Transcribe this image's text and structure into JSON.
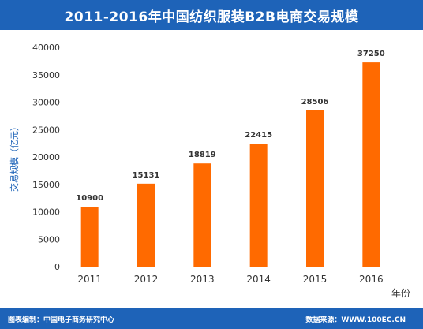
{
  "header": {
    "title": "2011-2016年中国纺织服装B2B电商交易规模"
  },
  "footer": {
    "left": "图表编制：中国电子商务研究中心",
    "right": "数据来源：WWW.100EC.CN"
  },
  "chart_data": {
    "type": "bar",
    "categories": [
      "2011",
      "2012",
      "2013",
      "2014",
      "2015",
      "2016"
    ],
    "values": [
      10900,
      15131,
      18819,
      22415,
      28506,
      37250
    ],
    "data_labels": [
      "10900",
      "15131",
      "18819",
      "22415",
      "28506",
      "37250"
    ],
    "title": "2011-2016年中国纺织服装B2B电商交易规模",
    "xlabel": "年份",
    "ylabel": "交易规模（亿元）",
    "ylim": [
      0,
      40000
    ],
    "yticks": [
      0,
      5000,
      10000,
      15000,
      20000,
      25000,
      30000,
      35000,
      40000
    ],
    "ytick_labels": [
      "0",
      "5000",
      "10000",
      "15000",
      "20000",
      "25000",
      "30000",
      "35000",
      "40000"
    ],
    "grid": false,
    "bar_color": "#ff6a00"
  }
}
